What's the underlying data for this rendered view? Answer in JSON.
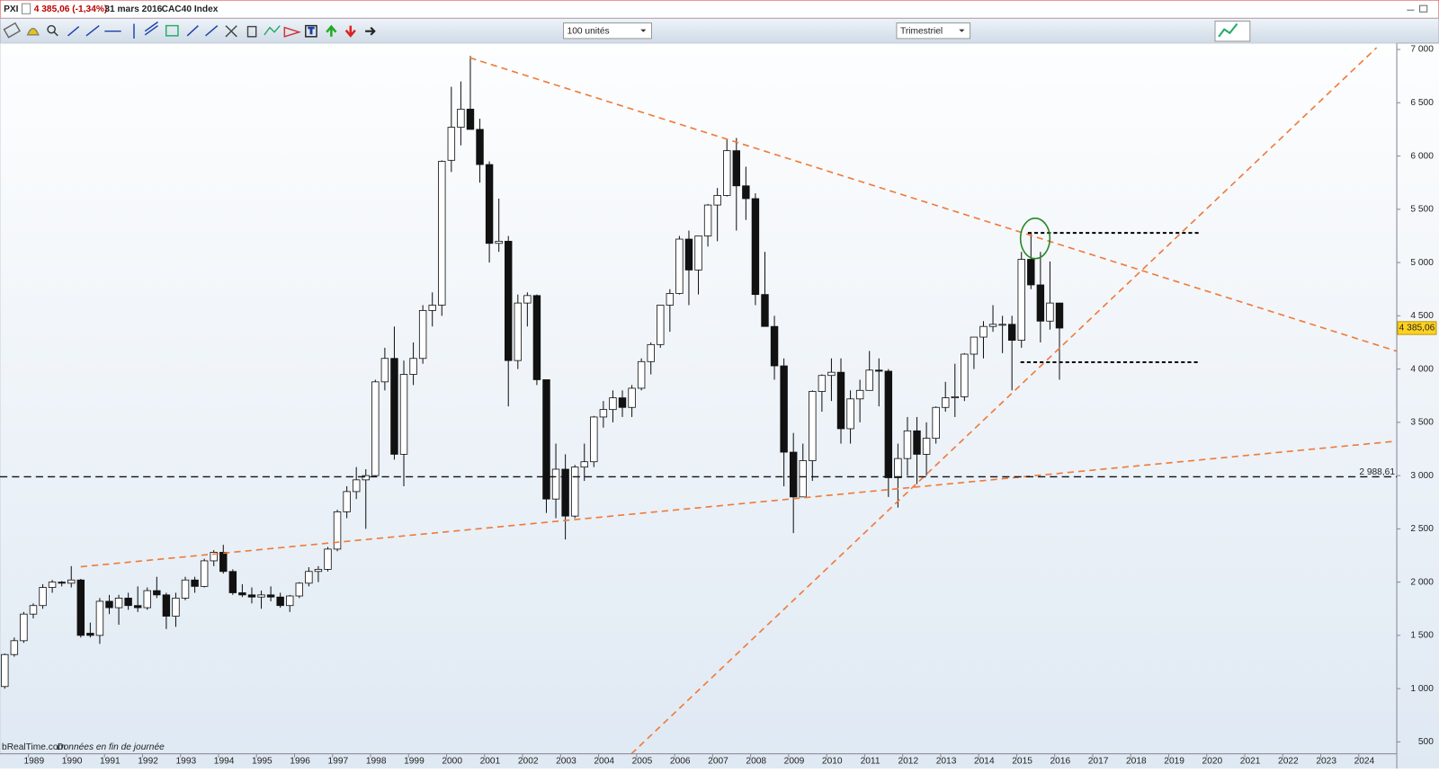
{
  "header": {
    "symbol": "PXI",
    "price_change": "4 385,06 (-1,34%)",
    "date": "31 mars 2016",
    "name": "CAC40 Index"
  },
  "toolbar": {
    "units": "100 unités",
    "period": "Trimestriel"
  },
  "footer": {
    "source": "bRealTime.com",
    "note": "Données en fin de journée"
  },
  "chart_data": {
    "type": "candlestick",
    "x": [
      1988.25,
      1988.5,
      1988.75,
      1989,
      1989.25,
      1989.5,
      1989.75,
      1990,
      1990.25,
      1990.5,
      1990.75,
      1991,
      1991.25,
      1991.5,
      1991.75,
      1992,
      1992.25,
      1992.5,
      1992.75,
      1993,
      1993.25,
      1993.5,
      1993.75,
      1994,
      1994.25,
      1994.5,
      1994.75,
      1995,
      1995.25,
      1995.5,
      1995.75,
      1996,
      1996.25,
      1996.5,
      1996.75,
      1997,
      1997.25,
      1997.5,
      1997.75,
      1998,
      1998.25,
      1998.5,
      1998.75,
      1999,
      1999.25,
      1999.5,
      1999.75,
      2000,
      2000.25,
      2000.5,
      2000.75,
      2001,
      2001.25,
      2001.5,
      2001.75,
      2002,
      2002.25,
      2002.5,
      2002.75,
      2003,
      2003.25,
      2003.5,
      2003.75,
      2004,
      2004.25,
      2004.5,
      2004.75,
      2005,
      2005.25,
      2005.5,
      2005.75,
      2006,
      2006.25,
      2006.5,
      2006.75,
      2007,
      2007.25,
      2007.5,
      2007.75,
      2008,
      2008.25,
      2008.5,
      2008.75,
      2009,
      2009.25,
      2009.5,
      2009.75,
      2010,
      2010.25,
      2010.5,
      2010.75,
      2011,
      2011.25,
      2011.5,
      2011.75,
      2012,
      2012.25,
      2012.5,
      2012.75,
      2013,
      2013.25,
      2013.5,
      2013.75,
      2014,
      2014.25,
      2014.5,
      2014.75,
      2015,
      2015.25,
      2015.5,
      2015.75,
      2016
    ],
    "ohlc": [
      [
        1020,
        1330,
        1000,
        1320
      ],
      [
        1320,
        1480,
        1300,
        1450
      ],
      [
        1450,
        1720,
        1430,
        1700
      ],
      [
        1700,
        1800,
        1660,
        1780
      ],
      [
        1780,
        1980,
        1750,
        1950
      ],
      [
        1950,
        2020,
        1900,
        2000
      ],
      [
        2000,
        2010,
        1960,
        1990
      ],
      [
        1990,
        2150,
        1950,
        2020
      ],
      [
        2020,
        2030,
        1480,
        1500
      ],
      [
        1520,
        1620,
        1480,
        1500
      ],
      [
        1500,
        1850,
        1420,
        1820
      ],
      [
        1820,
        1880,
        1700,
        1760
      ],
      [
        1760,
        1880,
        1600,
        1850
      ],
      [
        1850,
        1900,
        1740,
        1780
      ],
      [
        1780,
        1960,
        1720,
        1760
      ],
      [
        1760,
        1950,
        1740,
        1920
      ],
      [
        1920,
        2050,
        1850,
        1880
      ],
      [
        1880,
        1900,
        1560,
        1680
      ],
      [
        1680,
        1900,
        1580,
        1850
      ],
      [
        1850,
        2050,
        1830,
        2020
      ],
      [
        2020,
        2050,
        1900,
        1960
      ],
      [
        1960,
        2220,
        1950,
        2200
      ],
      [
        2200,
        2300,
        2150,
        2280
      ],
      [
        2280,
        2350,
        2080,
        2100
      ],
      [
        2100,
        2120,
        1880,
        1900
      ],
      [
        1900,
        1980,
        1860,
        1880
      ],
      [
        1880,
        1950,
        1800,
        1860
      ],
      [
        1860,
        1920,
        1750,
        1880
      ],
      [
        1880,
        1960,
        1820,
        1860
      ],
      [
        1860,
        1900,
        1760,
        1780
      ],
      [
        1780,
        1880,
        1720,
        1870
      ],
      [
        1870,
        2000,
        1850,
        1990
      ],
      [
        1990,
        2140,
        1960,
        2100
      ],
      [
        2100,
        2150,
        2000,
        2120
      ],
      [
        2120,
        2330,
        2100,
        2310
      ],
      [
        2310,
        2680,
        2290,
        2660
      ],
      [
        2660,
        2900,
        2600,
        2850
      ],
      [
        2850,
        3080,
        2780,
        2960
      ],
      [
        2960,
        3060,
        2500,
        3000
      ],
      [
        3000,
        3900,
        2990,
        3880
      ],
      [
        3880,
        4200,
        3800,
        4100
      ],
      [
        4100,
        4400,
        3150,
        3200
      ],
      [
        3200,
        4080,
        2900,
        3950
      ],
      [
        3950,
        4250,
        3850,
        4100
      ],
      [
        4100,
        4600,
        4050,
        4550
      ],
      [
        4550,
        4720,
        4400,
        4600
      ],
      [
        4600,
        5960,
        4500,
        5950
      ],
      [
        5960,
        6650,
        5850,
        6270
      ],
      [
        6270,
        6700,
        6100,
        6440
      ],
      [
        6440,
        6940,
        6300,
        6250
      ],
      [
        6250,
        6350,
        5750,
        5920
      ],
      [
        5920,
        5950,
        5000,
        5180
      ],
      [
        5180,
        5600,
        5100,
        5200
      ],
      [
        5200,
        5250,
        3650,
        4080
      ],
      [
        4080,
        4700,
        4000,
        4620
      ],
      [
        4620,
        4720,
        4400,
        4690
      ],
      [
        4690,
        4700,
        3850,
        3900
      ],
      [
        3900,
        3900,
        2650,
        2780
      ],
      [
        2780,
        3300,
        2600,
        3060
      ],
      [
        3060,
        3200,
        2400,
        2620
      ],
      [
        2620,
        3100,
        2600,
        3080
      ],
      [
        3080,
        3300,
        2950,
        3130
      ],
      [
        3130,
        3560,
        3080,
        3550
      ],
      [
        3550,
        3700,
        3450,
        3620
      ],
      [
        3620,
        3800,
        3500,
        3730
      ],
      [
        3730,
        3800,
        3550,
        3640
      ],
      [
        3640,
        3850,
        3550,
        3820
      ],
      [
        3820,
        4100,
        3800,
        4070
      ],
      [
        4070,
        4250,
        3950,
        4230
      ],
      [
        4230,
        4600,
        4200,
        4600
      ],
      [
        4600,
        4750,
        4350,
        4710
      ],
      [
        4710,
        5250,
        4700,
        5220
      ],
      [
        5220,
        5300,
        4600,
        4930
      ],
      [
        4930,
        5250,
        4700,
        5250
      ],
      [
        5250,
        5550,
        5150,
        5540
      ],
      [
        5540,
        5700,
        5200,
        5630
      ],
      [
        5630,
        6160,
        5620,
        6050
      ],
      [
        6050,
        6170,
        5300,
        5720
      ],
      [
        5720,
        5900,
        5400,
        5600
      ],
      [
        5600,
        5650,
        4600,
        4700
      ],
      [
        4700,
        5100,
        4400,
        4400
      ],
      [
        4400,
        4500,
        3900,
        4030
      ],
      [
        4030,
        4100,
        2900,
        3220
      ],
      [
        3220,
        3400,
        2460,
        2800
      ],
      [
        2800,
        3300,
        2800,
        3140
      ],
      [
        3140,
        3800,
        2950,
        3790
      ],
      [
        3790,
        3950,
        3600,
        3940
      ],
      [
        3940,
        4100,
        3700,
        3970
      ],
      [
        3970,
        4100,
        3300,
        3440
      ],
      [
        3440,
        3800,
        3300,
        3720
      ],
      [
        3720,
        3900,
        3500,
        3800
      ],
      [
        3800,
        4170,
        3800,
        3990
      ],
      [
        3990,
        4100,
        3650,
        3980
      ],
      [
        3980,
        4000,
        2800,
        2980
      ],
      [
        2980,
        3300,
        2700,
        3160
      ],
      [
        3160,
        3550,
        3000,
        3420
      ],
      [
        3420,
        3550,
        2920,
        3200
      ],
      [
        3200,
        3500,
        3000,
        3350
      ],
      [
        3350,
        3650,
        3300,
        3640
      ],
      [
        3640,
        3880,
        3600,
        3730
      ],
      [
        3730,
        4050,
        3550,
        3740
      ],
      [
        3740,
        4150,
        3700,
        4140
      ],
      [
        4140,
        4300,
        4000,
        4300
      ],
      [
        4300,
        4450,
        4100,
        4400
      ],
      [
        4400,
        4600,
        4350,
        4420
      ],
      [
        4420,
        4500,
        4150,
        4420
      ],
      [
        4420,
        4500,
        3800,
        4270
      ],
      [
        4270,
        5100,
        4200,
        5030
      ],
      [
        5030,
        5280,
        4750,
        4790
      ],
      [
        4790,
        5100,
        4250,
        4450
      ],
      [
        4450,
        5010,
        4370,
        4620
      ],
      [
        4620,
        4620,
        3900,
        4385
      ]
    ],
    "xlim": [
      1988.25,
      2025.0
    ],
    "xticks": [
      1989,
      1990,
      1991,
      1992,
      1993,
      1994,
      1995,
      1996,
      1997,
      1998,
      1999,
      2000,
      2001,
      2002,
      2003,
      2004,
      2005,
      2006,
      2007,
      2008,
      2009,
      2010,
      2011,
      2012,
      2013,
      2014,
      2015,
      2016,
      2017,
      2018,
      2019,
      2020,
      2021,
      2022,
      2023,
      2024
    ],
    "ylim": [
      388,
      7060
    ],
    "yticks": [
      500,
      {
        "value": 1000,
        "label": "1 000"
      },
      {
        "value": 1500,
        "label": "1 500"
      },
      {
        "value": 2000,
        "label": "2 000"
      },
      {
        "value": 2500,
        "label": "2 500"
      },
      {
        "value": 3000,
        "label": "3 000"
      },
      {
        "value": 3500,
        "label": "3 500"
      },
      {
        "value": 4000,
        "label": "4 000"
      },
      {
        "value": 4500,
        "label": "4 500"
      },
      {
        "value": 5000,
        "label": "5 000"
      },
      {
        "value": 5500,
        "label": "5 500"
      },
      {
        "value": 6000,
        "label": "6 000"
      },
      {
        "value": 6500,
        "label": "6 500"
      },
      {
        "value": 7000,
        "label": "7 000"
      }
    ],
    "last_price": {
      "value": 4385.06,
      "label": "4 385,06"
    },
    "support_level": {
      "value": 2988.61,
      "label": "2 988,61"
    },
    "up_color": "#ffffff",
    "down_color": "#111111"
  }
}
